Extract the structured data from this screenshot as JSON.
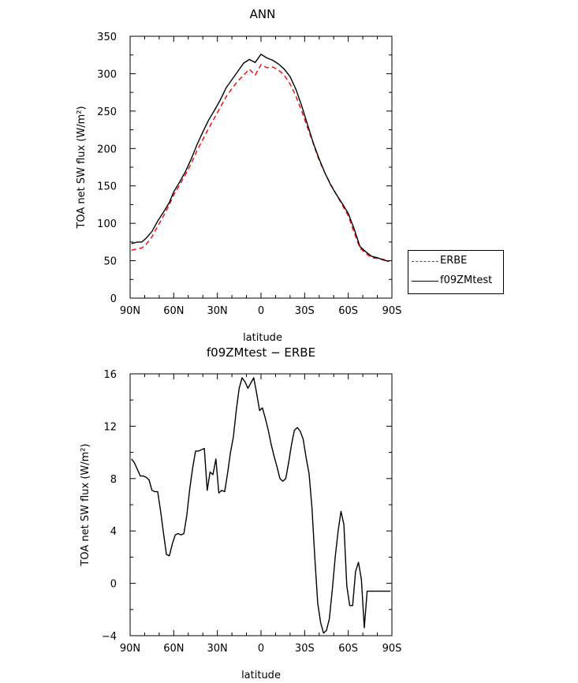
{
  "chart_data": [
    {
      "type": "line",
      "title": "ANN",
      "xlabel": "latitude",
      "ylabel": "TOA net SW flux (W/m²)",
      "xlim": [
        -90,
        90
      ],
      "ylim": [
        0,
        350
      ],
      "xticks": [
        -90,
        -60,
        -30,
        0,
        30,
        60,
        90
      ],
      "xtick_labels": [
        "90N",
        "60N",
        "30N",
        "0",
        "30S",
        "60S",
        "90S"
      ],
      "yticks": [
        0,
        50,
        100,
        150,
        200,
        250,
        300,
        350
      ],
      "ytick_labels": [
        "0",
        "50",
        "100",
        "150",
        "200",
        "250",
        "300",
        "350"
      ],
      "legend": "right",
      "grid": false,
      "series": [
        {
          "name": "ERBE",
          "color": "#ff0000",
          "style": "dashed",
          "x": [
            -89,
            -85,
            -82,
            -79,
            -75,
            -71,
            -67,
            -63,
            -60,
            -56,
            -52,
            -48,
            -44,
            -40,
            -36,
            -32,
            -28,
            -24,
            -20,
            -16,
            -12,
            -8,
            -4,
            0,
            4,
            8,
            12,
            16,
            20,
            24,
            28,
            32,
            36,
            40,
            44,
            48,
            52,
            56,
            60,
            64,
            68,
            72,
            76,
            80,
            84,
            88
          ],
          "y": [
            64,
            66,
            67,
            72,
            82,
            96,
            110,
            125,
            138,
            151,
            165,
            180,
            197,
            212,
            227,
            241,
            255,
            269,
            280,
            290,
            298,
            306,
            298,
            312,
            308,
            309,
            305,
            298,
            286,
            270,
            250,
            228,
            206,
            184,
            167,
            152,
            138,
            124,
            110,
            88,
            67,
            60,
            54,
            53,
            52,
            49
          ]
        },
        {
          "name": "f09ZMtest",
          "color": "#000000",
          "style": "solid",
          "x": [
            -89,
            -85,
            -82,
            -79,
            -75,
            -71,
            -67,
            -63,
            -60,
            -56,
            -52,
            -48,
            -44,
            -40,
            -36,
            -32,
            -28,
            -24,
            -20,
            -16,
            -12,
            -8,
            -4,
            0,
            4,
            8,
            12,
            16,
            20,
            24,
            28,
            32,
            36,
            40,
            44,
            48,
            52,
            56,
            60,
            64,
            68,
            72,
            76,
            80,
            84,
            88
          ],
          "y": [
            73,
            75,
            75,
            80,
            89,
            103,
            115,
            128,
            142,
            155,
            169,
            186,
            205,
            222,
            238,
            251,
            265,
            281,
            292,
            303,
            314,
            319,
            315,
            326,
            321,
            318,
            313,
            306,
            296,
            279,
            257,
            232,
            207,
            186,
            167,
            151,
            138,
            126,
            113,
            93,
            69,
            62,
            56,
            54,
            51,
            49
          ]
        }
      ]
    },
    {
      "type": "line",
      "title": "f09ZMtest − ERBE",
      "xlabel": "latitude",
      "ylabel": "TOA net SW flux (W/m²)",
      "xlim": [
        -90,
        90
      ],
      "ylim": [
        -4,
        16
      ],
      "xticks": [
        -90,
        -60,
        -30,
        0,
        30,
        60,
        90
      ],
      "xtick_labels": [
        "90N",
        "60N",
        "30N",
        "0",
        "30S",
        "60S",
        "90S"
      ],
      "yticks": [
        -4,
        0,
        4,
        8,
        12,
        16
      ],
      "ytick_labels": [
        "−4",
        "0",
        "4",
        "8",
        "12",
        "16"
      ],
      "grid": false,
      "series": [
        {
          "color": "#000000",
          "style": "solid",
          "x": [
            -89,
            -87,
            -85,
            -83,
            -81,
            -79,
            -77,
            -75,
            -73,
            -71,
            -69,
            -67,
            -65,
            -63,
            -61,
            -59,
            -57,
            -55,
            -53,
            -51,
            -49,
            -47,
            -45,
            -43,
            -41,
            -39,
            -37,
            -35,
            -33,
            -31,
            -29,
            -27,
            -25,
            -23,
            -21,
            -19,
            -17,
            -15,
            -13,
            -11,
            -9,
            -7,
            -5,
            -3,
            -1,
            1,
            3,
            5,
            7,
            9,
            11,
            13,
            15,
            17,
            19,
            21,
            23,
            25,
            27,
            29,
            31,
            33,
            35,
            37,
            39,
            41,
            43,
            45,
            47,
            49,
            51,
            53,
            55,
            57,
            59,
            61,
            63,
            65,
            67,
            69,
            71,
            73,
            75,
            77,
            79,
            81,
            83,
            85,
            87,
            89
          ],
          "y": [
            9.5,
            9.2,
            8.7,
            8.2,
            8.2,
            8.1,
            7.9,
            7.1,
            7.0,
            7.0,
            5.5,
            3.8,
            2.2,
            2.1,
            3.0,
            3.7,
            3.8,
            3.7,
            3.8,
            5.2,
            7.2,
            8.8,
            10.1,
            10.1,
            10.2,
            10.3,
            7.1,
            8.5,
            8.3,
            9.5,
            6.9,
            7.1,
            7.0,
            8.4,
            10.0,
            11.2,
            13.2,
            14.9,
            15.7,
            15.4,
            14.9,
            15.3,
            15.7,
            14.5,
            13.2,
            13.4,
            12.6,
            11.7,
            10.6,
            9.7,
            8.9,
            8.0,
            7.8,
            8.0,
            9.2,
            10.6,
            11.7,
            11.9,
            11.6,
            11.0,
            9.6,
            8.4,
            5.8,
            2.0,
            -1.5,
            -3.0,
            -3.8,
            -3.6,
            -2.7,
            -0.5,
            2.0,
            4.0,
            5.5,
            4.5,
            -0.2,
            -1.7,
            -1.7,
            0.9,
            1.6,
            0.3,
            -3.4,
            -0.6,
            -0.6,
            -0.6,
            -0.6,
            -0.6,
            -0.6,
            -0.6,
            -0.6,
            -0.6
          ]
        }
      ]
    }
  ]
}
